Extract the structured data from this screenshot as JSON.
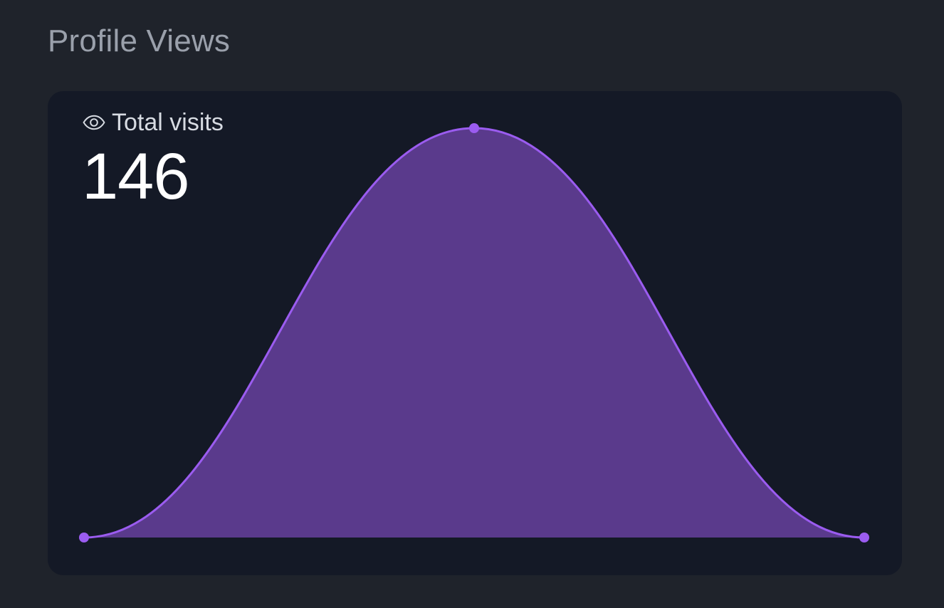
{
  "page": {
    "title": "Profile Views"
  },
  "stat": {
    "label": "Total visits",
    "value": "146",
    "icon": "eye-icon"
  },
  "colors": {
    "page_bg": "#1f232b",
    "card_bg": "#141926",
    "line": "#9b5cf0",
    "fill": "#5a3a8c",
    "point": "#9b5cf0"
  },
  "chart_data": {
    "type": "area",
    "x": [
      0,
      1,
      2
    ],
    "values": [
      0,
      146,
      0
    ],
    "curve": "smooth",
    "grid": false,
    "legend": "none",
    "ylim": [
      0,
      146
    ]
  }
}
